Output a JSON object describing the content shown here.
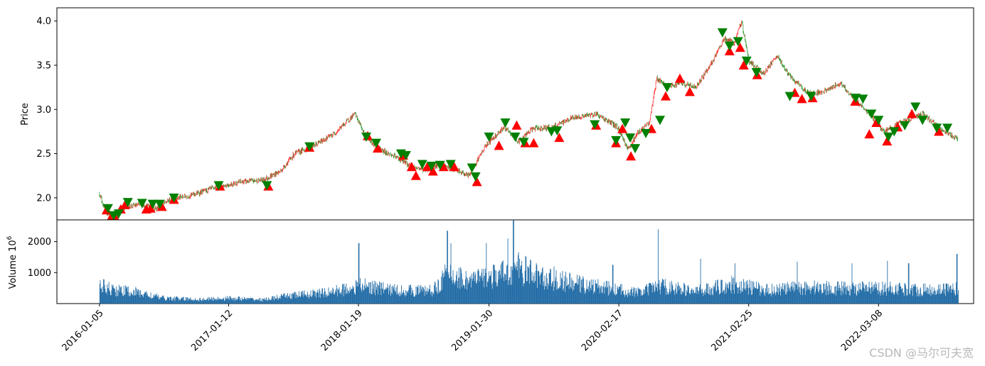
{
  "chart_data": [
    {
      "type": "candlestick",
      "ylabel": "Price",
      "ylim": [
        1.75,
        4.15
      ],
      "yticks": [
        "2.0",
        "2.5",
        "3.0",
        "3.5",
        "4.0"
      ],
      "ytick_values": [
        2.0,
        2.5,
        3.0,
        3.5,
        4.0
      ],
      "colors": {
        "up": "#ff0000",
        "down": "#008000",
        "buy_marker": "#ff0000",
        "sell_marker": "#008000"
      },
      "price_path": [
        {
          "x": 0,
          "y": 2.05
        },
        {
          "x": 8,
          "y": 1.85
        },
        {
          "x": 18,
          "y": 1.78
        },
        {
          "x": 35,
          "y": 1.9
        },
        {
          "x": 60,
          "y": 1.92
        },
        {
          "x": 80,
          "y": 1.88
        },
        {
          "x": 100,
          "y": 1.98
        },
        {
          "x": 130,
          "y": 2.03
        },
        {
          "x": 165,
          "y": 2.12
        },
        {
          "x": 200,
          "y": 2.18
        },
        {
          "x": 230,
          "y": 2.2
        },
        {
          "x": 255,
          "y": 2.3
        },
        {
          "x": 275,
          "y": 2.5
        },
        {
          "x": 300,
          "y": 2.58
        },
        {
          "x": 330,
          "y": 2.72
        },
        {
          "x": 360,
          "y": 2.95
        },
        {
          "x": 375,
          "y": 2.7
        },
        {
          "x": 395,
          "y": 2.55
        },
        {
          "x": 420,
          "y": 2.45
        },
        {
          "x": 440,
          "y": 2.35
        },
        {
          "x": 460,
          "y": 2.32
        },
        {
          "x": 480,
          "y": 2.38
        },
        {
          "x": 500,
          "y": 2.32
        },
        {
          "x": 520,
          "y": 2.25
        },
        {
          "x": 545,
          "y": 2.6
        },
        {
          "x": 570,
          "y": 2.8
        },
        {
          "x": 590,
          "y": 2.63
        },
        {
          "x": 610,
          "y": 2.78
        },
        {
          "x": 640,
          "y": 2.8
        },
        {
          "x": 665,
          "y": 2.9
        },
        {
          "x": 700,
          "y": 2.95
        },
        {
          "x": 730,
          "y": 2.8
        },
        {
          "x": 745,
          "y": 2.55
        },
        {
          "x": 760,
          "y": 2.75
        },
        {
          "x": 775,
          "y": 2.85
        },
        {
          "x": 785,
          "y": 3.35
        },
        {
          "x": 800,
          "y": 3.25
        },
        {
          "x": 820,
          "y": 3.3
        },
        {
          "x": 840,
          "y": 3.25
        },
        {
          "x": 865,
          "y": 3.55
        },
        {
          "x": 880,
          "y": 3.8
        },
        {
          "x": 895,
          "y": 3.75
        },
        {
          "x": 905,
          "y": 4.0
        },
        {
          "x": 915,
          "y": 3.55
        },
        {
          "x": 935,
          "y": 3.4
        },
        {
          "x": 955,
          "y": 3.6
        },
        {
          "x": 975,
          "y": 3.35
        },
        {
          "x": 1000,
          "y": 3.18
        },
        {
          "x": 1020,
          "y": 3.2
        },
        {
          "x": 1045,
          "y": 3.3
        },
        {
          "x": 1060,
          "y": 3.15
        },
        {
          "x": 1085,
          "y": 2.95
        },
        {
          "x": 1105,
          "y": 2.75
        },
        {
          "x": 1130,
          "y": 2.85
        },
        {
          "x": 1160,
          "y": 2.95
        },
        {
          "x": 1185,
          "y": 2.78
        },
        {
          "x": 1210,
          "y": 2.66
        }
      ],
      "buy_markers": [
        {
          "x": 10,
          "y": 1.86
        },
        {
          "x": 15,
          "y": 1.76
        },
        {
          "x": 22,
          "y": 1.78
        },
        {
          "x": 30,
          "y": 1.87
        },
        {
          "x": 36,
          "y": 1.92
        },
        {
          "x": 66,
          "y": 1.87
        },
        {
          "x": 72,
          "y": 1.88
        },
        {
          "x": 88,
          "y": 1.9
        },
        {
          "x": 105,
          "y": 1.98
        },
        {
          "x": 170,
          "y": 2.13
        },
        {
          "x": 238,
          "y": 2.13
        },
        {
          "x": 296,
          "y": 2.57
        },
        {
          "x": 378,
          "y": 2.7
        },
        {
          "x": 392,
          "y": 2.56
        },
        {
          "x": 428,
          "y": 2.48
        },
        {
          "x": 440,
          "y": 2.35
        },
        {
          "x": 446,
          "y": 2.25
        },
        {
          "x": 462,
          "y": 2.35
        },
        {
          "x": 470,
          "y": 2.3
        },
        {
          "x": 485,
          "y": 2.35
        },
        {
          "x": 500,
          "y": 2.35
        },
        {
          "x": 532,
          "y": 2.18
        },
        {
          "x": 563,
          "y": 2.59
        },
        {
          "x": 588,
          "y": 2.82
        },
        {
          "x": 600,
          "y": 2.62
        },
        {
          "x": 612,
          "y": 2.62
        },
        {
          "x": 648,
          "y": 2.68
        },
        {
          "x": 700,
          "y": 2.82
        },
        {
          "x": 728,
          "y": 2.62
        },
        {
          "x": 737,
          "y": 2.78
        },
        {
          "x": 749,
          "y": 2.47
        },
        {
          "x": 778,
          "y": 2.78
        },
        {
          "x": 798,
          "y": 3.15
        },
        {
          "x": 818,
          "y": 3.35
        },
        {
          "x": 832,
          "y": 3.2
        },
        {
          "x": 888,
          "y": 3.66
        },
        {
          "x": 903,
          "y": 3.7
        },
        {
          "x": 908,
          "y": 3.5
        },
        {
          "x": 927,
          "y": 3.39
        },
        {
          "x": 980,
          "y": 3.19
        },
        {
          "x": 990,
          "y": 3.12
        },
        {
          "x": 1005,
          "y": 3.13
        },
        {
          "x": 1065,
          "y": 3.09
        },
        {
          "x": 1085,
          "y": 2.72
        },
        {
          "x": 1095,
          "y": 2.85
        },
        {
          "x": 1110,
          "y": 2.64
        },
        {
          "x": 1125,
          "y": 2.8
        },
        {
          "x": 1145,
          "y": 2.95
        },
        {
          "x": 1183,
          "y": 2.75
        }
      ],
      "sell_markers": [
        {
          "x": 12,
          "y": 1.88
        },
        {
          "x": 20,
          "y": 1.8
        },
        {
          "x": 27,
          "y": 1.82
        },
        {
          "x": 40,
          "y": 1.95
        },
        {
          "x": 60,
          "y": 1.94
        },
        {
          "x": 75,
          "y": 1.93
        },
        {
          "x": 85,
          "y": 1.93
        },
        {
          "x": 105,
          "y": 2.0
        },
        {
          "x": 168,
          "y": 2.14
        },
        {
          "x": 236,
          "y": 2.14
        },
        {
          "x": 296,
          "y": 2.58
        },
        {
          "x": 376,
          "y": 2.69
        },
        {
          "x": 390,
          "y": 2.62
        },
        {
          "x": 425,
          "y": 2.5
        },
        {
          "x": 432,
          "y": 2.48
        },
        {
          "x": 455,
          "y": 2.38
        },
        {
          "x": 468,
          "y": 2.36
        },
        {
          "x": 480,
          "y": 2.37
        },
        {
          "x": 495,
          "y": 2.38
        },
        {
          "x": 525,
          "y": 2.34
        },
        {
          "x": 530,
          "y": 2.24
        },
        {
          "x": 549,
          "y": 2.69
        },
        {
          "x": 572,
          "y": 2.85
        },
        {
          "x": 586,
          "y": 2.69
        },
        {
          "x": 598,
          "y": 2.63
        },
        {
          "x": 637,
          "y": 2.75
        },
        {
          "x": 645,
          "y": 2.76
        },
        {
          "x": 698,
          "y": 2.83
        },
        {
          "x": 728,
          "y": 2.65
        },
        {
          "x": 741,
          "y": 2.85
        },
        {
          "x": 748,
          "y": 2.68
        },
        {
          "x": 755,
          "y": 2.56
        },
        {
          "x": 770,
          "y": 2.73
        },
        {
          "x": 790,
          "y": 2.88
        },
        {
          "x": 800,
          "y": 3.25
        },
        {
          "x": 878,
          "y": 3.87
        },
        {
          "x": 888,
          "y": 3.72
        },
        {
          "x": 900,
          "y": 3.77
        },
        {
          "x": 912,
          "y": 3.55
        },
        {
          "x": 926,
          "y": 3.42
        },
        {
          "x": 973,
          "y": 3.15
        },
        {
          "x": 1003,
          "y": 3.15
        },
        {
          "x": 1066,
          "y": 3.13
        },
        {
          "x": 1076,
          "y": 3.12
        },
        {
          "x": 1088,
          "y": 2.95
        },
        {
          "x": 1098,
          "y": 2.88
        },
        {
          "x": 1112,
          "y": 2.69
        },
        {
          "x": 1120,
          "y": 2.75
        },
        {
          "x": 1135,
          "y": 2.82
        },
        {
          "x": 1150,
          "y": 3.03
        },
        {
          "x": 1160,
          "y": 2.88
        },
        {
          "x": 1180,
          "y": 2.79
        },
        {
          "x": 1195,
          "y": 2.79
        }
      ]
    },
    {
      "type": "bar",
      "ylabel": "Volume  10",
      "ylabel_exponent": "6",
      "ylim": [
        0,
        2700
      ],
      "yticks": [
        "1000",
        "2000"
      ],
      "ytick_values": [
        1000,
        2000
      ],
      "color": "#1f6aa5",
      "bar_count": 1600,
      "volume_levels": [
        {
          "x": 0,
          "v": 650
        },
        {
          "x": 20,
          "v": 500
        },
        {
          "x": 50,
          "v": 420
        },
        {
          "x": 90,
          "v": 200
        },
        {
          "x": 140,
          "v": 150
        },
        {
          "x": 180,
          "v": 200
        },
        {
          "x": 230,
          "v": 140
        },
        {
          "x": 270,
          "v": 300
        },
        {
          "x": 320,
          "v": 400
        },
        {
          "x": 370,
          "v": 650
        },
        {
          "x": 420,
          "v": 480
        },
        {
          "x": 470,
          "v": 480
        },
        {
          "x": 490,
          "v": 1100
        },
        {
          "x": 520,
          "v": 850
        },
        {
          "x": 560,
          "v": 1000
        },
        {
          "x": 590,
          "v": 1300
        },
        {
          "x": 630,
          "v": 900
        },
        {
          "x": 680,
          "v": 700
        },
        {
          "x": 720,
          "v": 550
        },
        {
          "x": 760,
          "v": 400
        },
        {
          "x": 790,
          "v": 650
        },
        {
          "x": 840,
          "v": 450
        },
        {
          "x": 890,
          "v": 700
        },
        {
          "x": 940,
          "v": 500
        },
        {
          "x": 1000,
          "v": 600
        },
        {
          "x": 1060,
          "v": 550
        },
        {
          "x": 1120,
          "v": 550
        },
        {
          "x": 1160,
          "v": 500
        },
        {
          "x": 1200,
          "v": 550
        }
      ],
      "volume_spikes": [
        {
          "x": 365,
          "v": 1950
        },
        {
          "x": 490,
          "v": 2350
        },
        {
          "x": 495,
          "v": 1950
        },
        {
          "x": 545,
          "v": 1950
        },
        {
          "x": 575,
          "v": 2100
        },
        {
          "x": 583,
          "v": 2700
        },
        {
          "x": 640,
          "v": 1200
        },
        {
          "x": 723,
          "v": 1250
        },
        {
          "x": 787,
          "v": 2400
        },
        {
          "x": 847,
          "v": 1450
        },
        {
          "x": 895,
          "v": 1300
        },
        {
          "x": 983,
          "v": 1350
        },
        {
          "x": 1060,
          "v": 1300
        },
        {
          "x": 1110,
          "v": 1380
        },
        {
          "x": 1140,
          "v": 1300
        },
        {
          "x": 1208,
          "v": 1600
        }
      ],
      "xticks": [
        "2016-01-05",
        "2017-01-12",
        "2018-01-19",
        "2019-01-30",
        "2020-02-17",
        "2021-02-25",
        "2022-03-08"
      ],
      "xtick_positions": [
        0,
        182,
        365,
        549,
        732,
        915,
        1098
      ],
      "x_range": [
        -60,
        1232
      ]
    }
  ],
  "watermark": "CSDN @马尔可夫宽"
}
